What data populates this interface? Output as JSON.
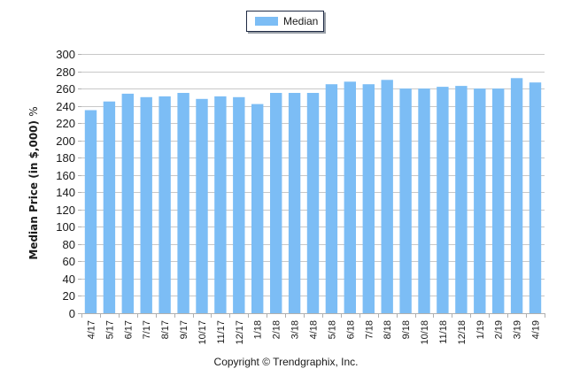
{
  "legend": {
    "label": "Median",
    "color": "#7cbdf5"
  },
  "footer": {
    "copyright": "Copyright © Trendgraphix, Inc."
  },
  "axis": {
    "ylabel": "Median Price (in $,000)",
    "ylabel_suffix": "%"
  },
  "colors": {
    "bar": "#7cbdf5",
    "grid": "#c8c8c8",
    "axis": "#b0b0b0",
    "text": "#1a1a1a"
  },
  "chart_data": {
    "type": "bar",
    "title": "",
    "xlabel": "",
    "ylabel": "Median Price (in $,000) %",
    "ylim": [
      0,
      300
    ],
    "yticks": [
      0,
      20,
      40,
      60,
      80,
      100,
      120,
      140,
      160,
      180,
      200,
      220,
      240,
      260,
      280,
      300
    ],
    "grid": true,
    "legend_position": "top-center",
    "categories": [
      "4/17",
      "5/17",
      "6/17",
      "7/17",
      "8/17",
      "9/17",
      "10/17",
      "11/17",
      "12/17",
      "1/18",
      "2/18",
      "3/18",
      "4/18",
      "5/18",
      "6/18",
      "7/18",
      "8/18",
      "9/18",
      "10/18",
      "11/18",
      "12/18",
      "1/19",
      "2/19",
      "3/19",
      "4/19"
    ],
    "series": [
      {
        "name": "Median",
        "values": [
          235,
          245,
          254,
          250,
          251,
          255,
          248,
          251,
          250,
          242,
          255,
          255,
          255,
          265,
          268,
          265,
          270,
          260,
          260,
          262,
          263,
          260,
          260,
          272,
          267
        ]
      }
    ]
  }
}
